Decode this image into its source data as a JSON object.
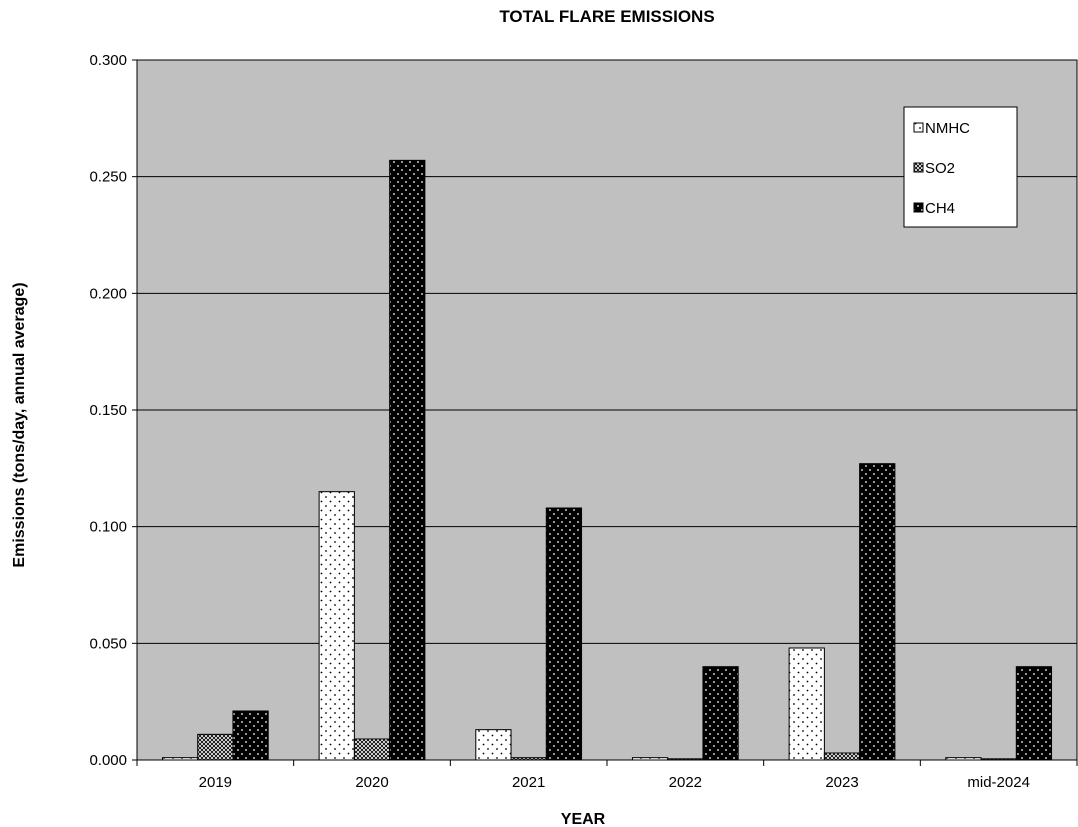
{
  "chart_data": {
    "type": "bar",
    "title": "TOTAL FLARE EMISSIONS",
    "xlabel": "YEAR",
    "ylabel": "Emissions (tons/day, annual average)",
    "categories": [
      "2019",
      "2020",
      "2021",
      "2022",
      "2023",
      "mid-2024"
    ],
    "ylim": [
      0,
      0.3
    ],
    "yticks": [
      "0.000",
      "0.050",
      "0.100",
      "0.150",
      "0.200",
      "0.250",
      "0.300"
    ],
    "grid": true,
    "legend_position": "top-right",
    "plot_background": "#c0c0c0",
    "series": [
      {
        "name": "NMHC",
        "pattern": "light-dots",
        "values": [
          0.001,
          0.115,
          0.013,
          0.001,
          0.048,
          0.001
        ]
      },
      {
        "name": "SO2",
        "pattern": "crosshatch",
        "values": [
          0.011,
          0.009,
          0.001,
          0.0005,
          0.003,
          0.0005
        ]
      },
      {
        "name": "CH4",
        "pattern": "dark-dots",
        "values": [
          0.021,
          0.257,
          0.108,
          0.04,
          0.127,
          0.04
        ]
      }
    ]
  }
}
